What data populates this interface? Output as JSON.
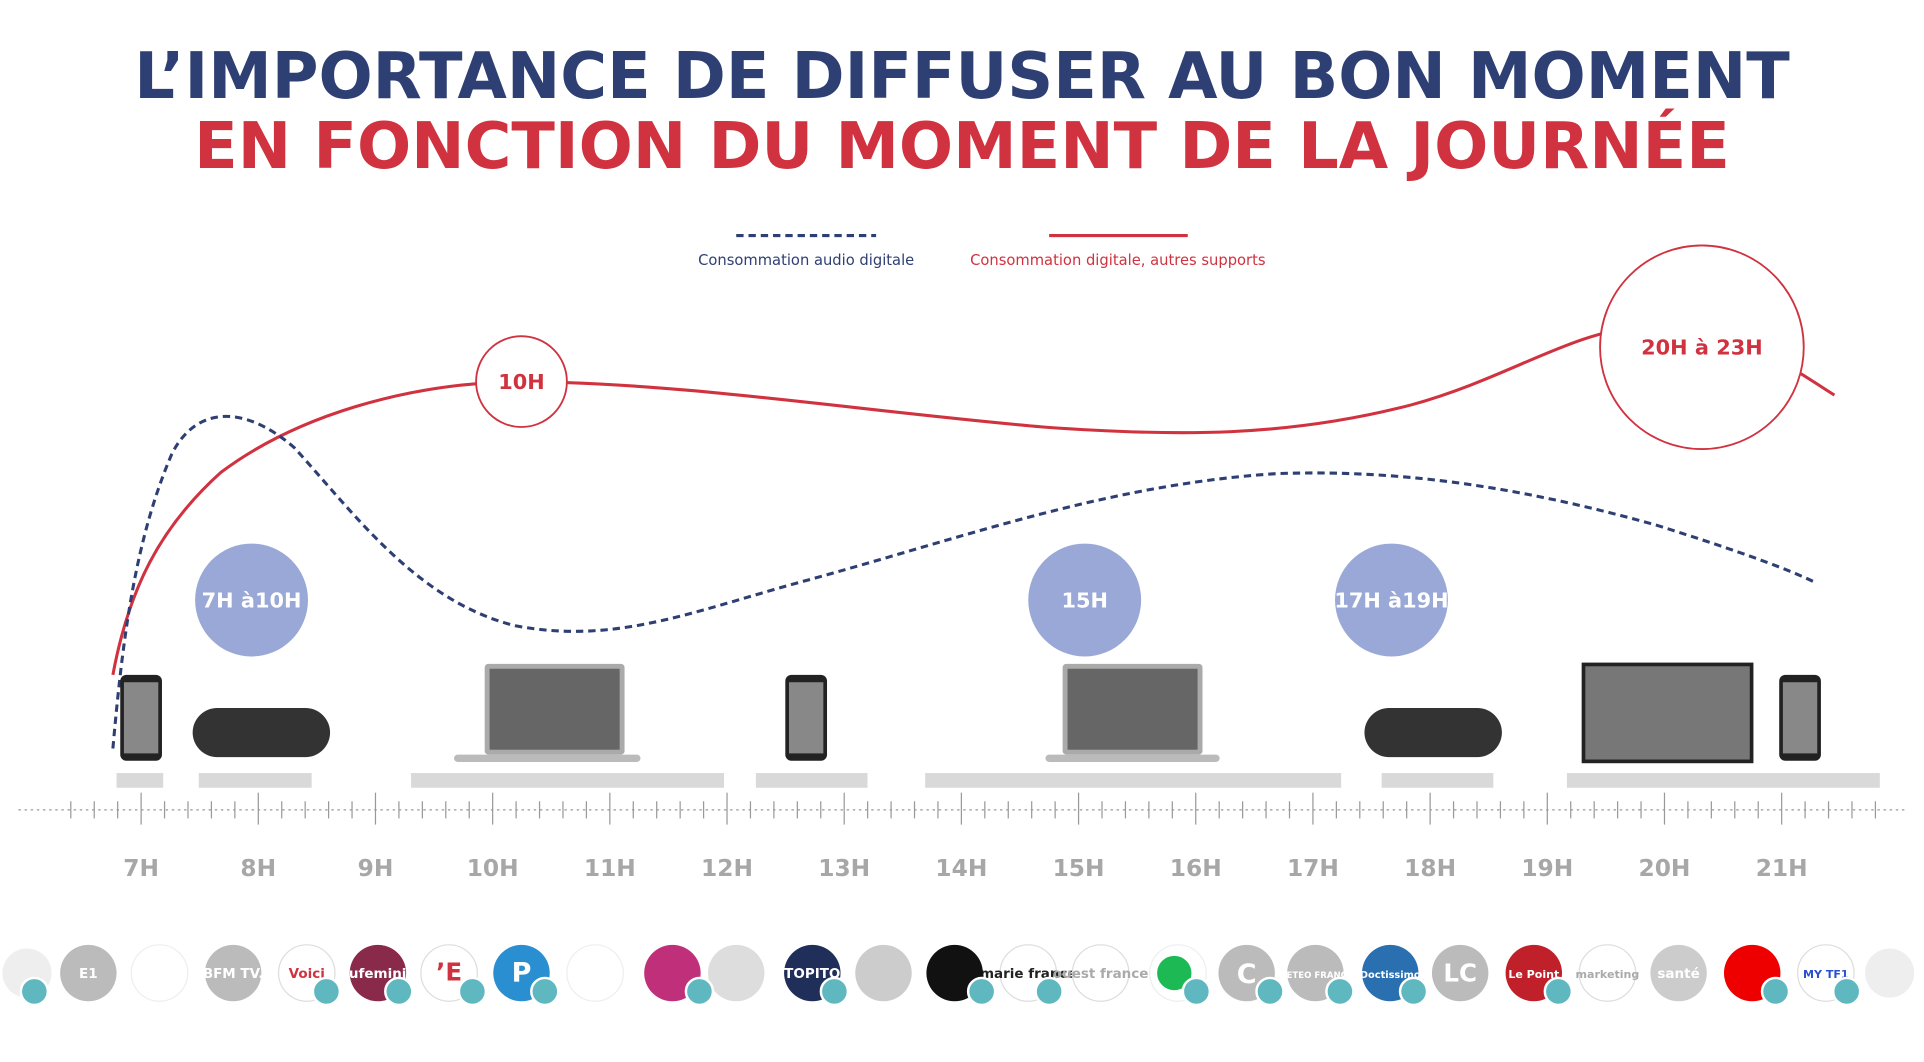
{
  "title": {
    "line1": "L’IMPORTANCE DE DIFFUSER AU BON MOMENT",
    "line2": "EN FONCTION DU MOMENT DE LA JOURNÉE"
  },
  "legend": [
    "Consommation audio digitale",
    "Consommation digitale, autres supports"
  ],
  "bubbles": [
    "10H",
    "20H à 23H",
    "7H à10H",
    "15H",
    "17H à19H"
  ],
  "hours": [
    "7H",
    "8H",
    "9H",
    "10H",
    "11H",
    "12H",
    "13H",
    "14H",
    "15H",
    "16H",
    "17H",
    "18H",
    "19H",
    "20H",
    "21H"
  ],
  "logos": [
    "E1",
    "BFM TV.",
    "Voici",
    "aufeminin",
    "’E",
    "P",
    "TOPITO",
    "marie france",
    "ouest france",
    "C",
    "METEO FRANCE",
    "Doctissimo",
    "LC",
    "Le Point",
    "marketing",
    "santé",
    "MY TF1"
  ]
}
